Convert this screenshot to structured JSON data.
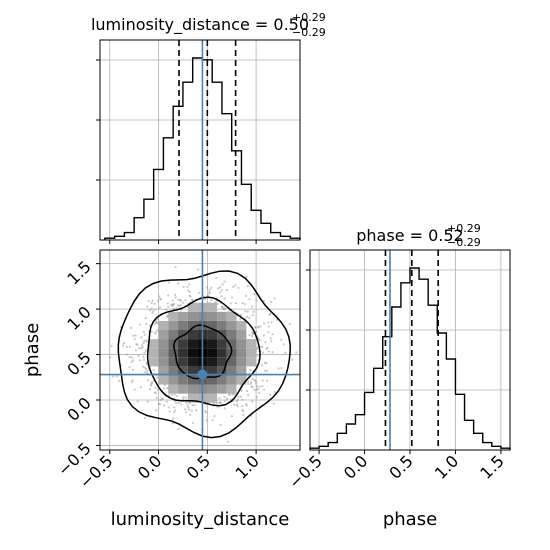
{
  "chart_data": [
    {
      "type": "histogram",
      "panel": "top-left",
      "title": {
        "param": "luminosity_distance",
        "median": "0.50",
        "plus": "+0.29",
        "minus": "−0.29"
      },
      "xlim": [
        -0.6,
        1.45
      ],
      "bins": [
        -0.55,
        -0.45,
        -0.35,
        -0.25,
        -0.15,
        -0.05,
        0.05,
        0.15,
        0.25,
        0.35,
        0.45,
        0.55,
        0.65,
        0.75,
        0.85,
        0.95,
        1.05,
        1.15,
        1.25,
        1.35,
        1.45
      ],
      "counts": [
        0.01,
        0.02,
        0.04,
        0.12,
        0.22,
        0.38,
        0.55,
        0.72,
        0.85,
        0.98,
        0.97,
        0.85,
        0.68,
        0.48,
        0.3,
        0.16,
        0.09,
        0.04,
        0.02,
        0.01
      ],
      "quantiles": [
        0.21,
        0.5,
        0.79
      ],
      "truth": 0.45,
      "grid": true
    },
    {
      "type": "histogram",
      "panel": "bottom-right",
      "title": {
        "param": "phase",
        "median": "0.52",
        "plus": "+0.29",
        "minus": "−0.29"
      },
      "xlabel": "phase",
      "xlim": [
        -0.6,
        1.6
      ],
      "xticks": [
        -0.5,
        0.0,
        0.5,
        1.0,
        1.5
      ],
      "xticklabels": [
        "−0.5",
        "0.0",
        "0.5",
        "1.0",
        "1.5"
      ],
      "bins": [
        -0.6,
        -0.5,
        -0.4,
        -0.3,
        -0.2,
        -0.1,
        0.0,
        0.1,
        0.2,
        0.3,
        0.4,
        0.5,
        0.6,
        0.7,
        0.8,
        0.9,
        1.0,
        1.1,
        1.2,
        1.3,
        1.4,
        1.5,
        1.6
      ],
      "counts": [
        0.01,
        0.02,
        0.04,
        0.09,
        0.14,
        0.19,
        0.31,
        0.44,
        0.61,
        0.77,
        0.9,
        0.98,
        0.92,
        0.78,
        0.63,
        0.49,
        0.3,
        0.16,
        0.09,
        0.04,
        0.02,
        0.01
      ],
      "quantiles": [
        0.23,
        0.52,
        0.81
      ],
      "truth": 0.28,
      "grid": true
    },
    {
      "type": "scatter",
      "panel": "bottom-left",
      "xlabel": "luminosity_distance",
      "ylabel": "phase",
      "xlim": [
        -0.6,
        1.45
      ],
      "ylim": [
        -0.55,
        1.65
      ],
      "xticks": [
        -0.5,
        0.0,
        0.5,
        1.0
      ],
      "xticklabels": [
        "−0.5",
        "0.0",
        "0.5",
        "1.0"
      ],
      "yticks": [
        -0.5,
        0.0,
        0.5,
        1.0,
        1.5
      ],
      "yticklabels": [
        "−0.5",
        "0.0",
        "0.5",
        "1.0",
        "1.5"
      ],
      "center": [
        0.45,
        0.52
      ],
      "spread": [
        0.29,
        0.29
      ],
      "truth": [
        0.45,
        0.28
      ],
      "contour_levels": [
        0.39,
        0.86,
        0.99
      ],
      "grid": true
    }
  ],
  "colors": {
    "truth": "#4682b4",
    "axis": "#000000",
    "grid": "#b0b0b0"
  }
}
